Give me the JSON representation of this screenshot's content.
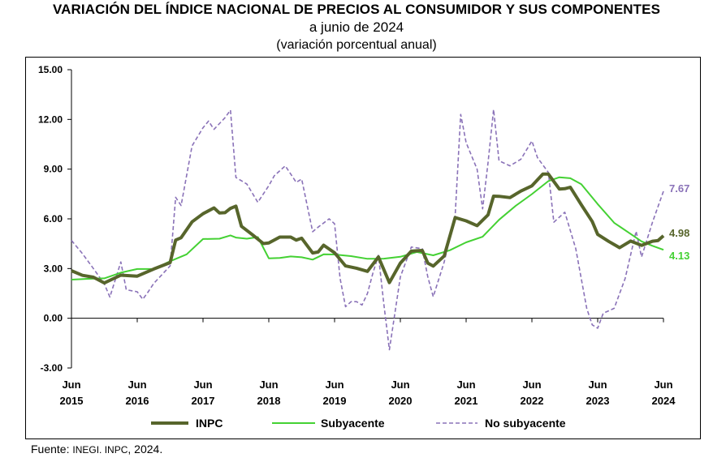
{
  "header": {
    "title": "VARIACIÓN DEL ÍNDICE NACIONAL DE PRECIOS AL CONSUMIDOR Y SUS COMPONENTES",
    "subtitle": "a junio de 2024",
    "unit_note": "(variación porcentual anual)"
  },
  "footer": {
    "source_label": "Fuente:",
    "source_text": "INEGI. INPC",
    "source_year": ", 2024."
  },
  "colors": {
    "inpc": "#57652b",
    "subyacente": "#44d133",
    "no_subyacente": "#8a72b8"
  },
  "chart_data": {
    "type": "line",
    "ylim": [
      -3,
      15
    ],
    "yticks": [
      "15.00",
      "12.00",
      "9.00",
      "6.00",
      "3.00",
      "0.00",
      "-3.00"
    ],
    "xlim": [
      "2015-06",
      "2024-06"
    ],
    "xticks": [
      {
        "month": "Jun",
        "year": "2015"
      },
      {
        "month": "Jun",
        "year": "2016"
      },
      {
        "month": "Jun",
        "year": "2017"
      },
      {
        "month": "Jun",
        "year": "2018"
      },
      {
        "month": "Jun",
        "year": "2019"
      },
      {
        "month": "Jun",
        "year": "2020"
      },
      {
        "month": "Jun",
        "year": "2021"
      },
      {
        "month": "Jun",
        "year": "2022"
      },
      {
        "month": "Jun",
        "year": "2023"
      },
      {
        "month": "Jun",
        "year": "2024"
      }
    ],
    "grid": false,
    "legend_position": "bottom",
    "series": [
      {
        "name": "INPC",
        "end_label": "4.98",
        "values": [
          [
            "2015-06",
            2.87
          ],
          [
            "2015-08",
            2.59
          ],
          [
            "2015-10",
            2.48
          ],
          [
            "2015-12",
            2.13
          ],
          [
            "2016-03",
            2.6
          ],
          [
            "2016-06",
            2.54
          ],
          [
            "2016-09",
            2.97
          ],
          [
            "2016-12",
            3.36
          ],
          [
            "2017-01",
            4.72
          ],
          [
            "2017-02",
            4.86
          ],
          [
            "2017-04",
            5.82
          ],
          [
            "2017-06",
            6.31
          ],
          [
            "2017-08",
            6.66
          ],
          [
            "2017-09",
            6.35
          ],
          [
            "2017-10",
            6.37
          ],
          [
            "2017-11",
            6.63
          ],
          [
            "2017-12",
            6.77
          ],
          [
            "2018-01",
            5.55
          ],
          [
            "2018-03",
            5.04
          ],
          [
            "2018-05",
            4.51
          ],
          [
            "2018-06",
            4.54
          ],
          [
            "2018-08",
            4.9
          ],
          [
            "2018-10",
            4.9
          ],
          [
            "2018-11",
            4.72
          ],
          [
            "2018-12",
            4.83
          ],
          [
            "2019-02",
            3.94
          ],
          [
            "2019-03",
            4.0
          ],
          [
            "2019-04",
            4.41
          ],
          [
            "2019-06",
            3.95
          ],
          [
            "2019-08",
            3.16
          ],
          [
            "2019-10",
            3.02
          ],
          [
            "2019-12",
            2.83
          ],
          [
            "2020-02",
            3.7
          ],
          [
            "2020-04",
            2.15
          ],
          [
            "2020-06",
            3.33
          ],
          [
            "2020-08",
            4.05
          ],
          [
            "2020-10",
            4.09
          ],
          [
            "2020-11",
            3.33
          ],
          [
            "2020-12",
            3.15
          ],
          [
            "2021-02",
            3.76
          ],
          [
            "2021-04",
            6.08
          ],
          [
            "2021-06",
            5.88
          ],
          [
            "2021-08",
            5.59
          ],
          [
            "2021-10",
            6.24
          ],
          [
            "2021-11",
            7.37
          ],
          [
            "2021-12",
            7.36
          ],
          [
            "2022-02",
            7.28
          ],
          [
            "2022-04",
            7.68
          ],
          [
            "2022-06",
            7.99
          ],
          [
            "2022-08",
            8.7
          ],
          [
            "2022-09",
            8.7
          ],
          [
            "2022-11",
            7.8
          ],
          [
            "2022-12",
            7.82
          ],
          [
            "2023-01",
            7.91
          ],
          [
            "2023-03",
            6.85
          ],
          [
            "2023-05",
            5.84
          ],
          [
            "2023-06",
            5.06
          ],
          [
            "2023-08",
            4.64
          ],
          [
            "2023-10",
            4.26
          ],
          [
            "2023-12",
            4.66
          ],
          [
            "2024-02",
            4.4
          ],
          [
            "2024-04",
            4.65
          ],
          [
            "2024-05",
            4.69
          ],
          [
            "2024-06",
            4.98
          ]
        ]
      },
      {
        "name": "Subyacente",
        "end_label": "4.13",
        "values": [
          [
            "2015-06",
            2.33
          ],
          [
            "2015-09",
            2.38
          ],
          [
            "2015-12",
            2.41
          ],
          [
            "2016-03",
            2.75
          ],
          [
            "2016-06",
            2.97
          ],
          [
            "2016-09",
            2.97
          ],
          [
            "2016-12",
            3.44
          ],
          [
            "2017-03",
            3.86
          ],
          [
            "2017-06",
            4.78
          ],
          [
            "2017-09",
            4.8
          ],
          [
            "2017-11",
            5.0
          ],
          [
            "2017-12",
            4.87
          ],
          [
            "2018-02",
            4.8
          ],
          [
            "2018-04",
            4.9
          ],
          [
            "2018-06",
            3.62
          ],
          [
            "2018-08",
            3.64
          ],
          [
            "2018-10",
            3.73
          ],
          [
            "2018-12",
            3.68
          ],
          [
            "2019-02",
            3.54
          ],
          [
            "2019-04",
            3.86
          ],
          [
            "2019-06",
            3.85
          ],
          [
            "2019-09",
            3.75
          ],
          [
            "2019-12",
            3.59
          ],
          [
            "2020-03",
            3.6
          ],
          [
            "2020-06",
            3.71
          ],
          [
            "2020-09",
            4.0
          ],
          [
            "2020-12",
            3.8
          ],
          [
            "2021-03",
            4.1
          ],
          [
            "2021-06",
            4.58
          ],
          [
            "2021-09",
            4.92
          ],
          [
            "2021-12",
            5.94
          ],
          [
            "2022-03",
            6.78
          ],
          [
            "2022-06",
            7.49
          ],
          [
            "2022-09",
            8.28
          ],
          [
            "2022-11",
            8.51
          ],
          [
            "2023-01",
            8.45
          ],
          [
            "2023-03",
            8.09
          ],
          [
            "2023-06",
            6.89
          ],
          [
            "2023-09",
            5.76
          ],
          [
            "2023-12",
            5.09
          ],
          [
            "2024-02",
            4.64
          ],
          [
            "2024-04",
            4.37
          ],
          [
            "2024-06",
            4.13
          ]
        ]
      },
      {
        "name": "No subyacente",
        "end_label": "7.67",
        "values": [
          [
            "2015-06",
            4.7
          ],
          [
            "2015-08",
            3.9
          ],
          [
            "2015-10",
            3.0
          ],
          [
            "2015-12",
            2.07
          ],
          [
            "2016-01",
            1.28
          ],
          [
            "2016-03",
            3.4
          ],
          [
            "2016-04",
            1.72
          ],
          [
            "2016-06",
            1.6
          ],
          [
            "2016-07",
            1.15
          ],
          [
            "2016-08",
            1.6
          ],
          [
            "2016-09",
            2.1
          ],
          [
            "2016-12",
            3.16
          ],
          [
            "2017-01",
            7.3
          ],
          [
            "2017-02",
            6.8
          ],
          [
            "2017-04",
            10.4
          ],
          [
            "2017-06",
            11.5
          ],
          [
            "2017-07",
            11.9
          ],
          [
            "2017-08",
            11.4
          ],
          [
            "2017-10",
            12.1
          ],
          [
            "2017-11",
            12.56
          ],
          [
            "2017-12",
            8.5
          ],
          [
            "2018-02",
            8.1
          ],
          [
            "2018-04",
            7.0
          ],
          [
            "2018-06",
            8.0
          ],
          [
            "2018-07",
            8.6
          ],
          [
            "2018-09",
            9.2
          ],
          [
            "2018-11",
            8.2
          ],
          [
            "2018-12",
            8.4
          ],
          [
            "2019-02",
            5.22
          ],
          [
            "2019-03",
            5.5
          ],
          [
            "2019-05",
            6.0
          ],
          [
            "2019-06",
            5.7
          ],
          [
            "2019-07",
            2.4
          ],
          [
            "2019-08",
            0.7
          ],
          [
            "2019-09",
            1.0
          ],
          [
            "2019-10",
            1.0
          ],
          [
            "2019-11",
            0.8
          ],
          [
            "2019-12",
            1.5
          ],
          [
            "2020-01",
            2.74
          ],
          [
            "2020-02",
            3.8
          ],
          [
            "2020-03",
            0.8
          ],
          [
            "2020-04",
            -1.9
          ],
          [
            "2020-06",
            2.5
          ],
          [
            "2020-08",
            4.3
          ],
          [
            "2020-10",
            4.2
          ],
          [
            "2020-11",
            2.5
          ],
          [
            "2020-12",
            1.3
          ],
          [
            "2021-02",
            3.4
          ],
          [
            "2021-04",
            6.2
          ],
          [
            "2021-05",
            12.3
          ],
          [
            "2021-06",
            10.6
          ],
          [
            "2021-08",
            9.0
          ],
          [
            "2021-09",
            6.6
          ],
          [
            "2021-10",
            9.4
          ],
          [
            "2021-11",
            12.6
          ],
          [
            "2021-12",
            9.5
          ],
          [
            "2022-02",
            9.2
          ],
          [
            "2022-04",
            9.6
          ],
          [
            "2022-06",
            10.7
          ],
          [
            "2022-07",
            9.7
          ],
          [
            "2022-09",
            8.8
          ],
          [
            "2022-10",
            5.8
          ],
          [
            "2022-12",
            6.4
          ],
          [
            "2023-02",
            4.2
          ],
          [
            "2023-04",
            0.6
          ],
          [
            "2023-05",
            -0.4
          ],
          [
            "2023-06",
            -0.6
          ],
          [
            "2023-07",
            0.3
          ],
          [
            "2023-09",
            0.6
          ],
          [
            "2023-11",
            2.4
          ],
          [
            "2024-01",
            5.25
          ],
          [
            "2024-02",
            3.7
          ],
          [
            "2024-04",
            5.8
          ],
          [
            "2024-06",
            7.67
          ]
        ]
      }
    ],
    "legend": [
      "INPC",
      "Subyacente",
      "No subyacente"
    ]
  }
}
